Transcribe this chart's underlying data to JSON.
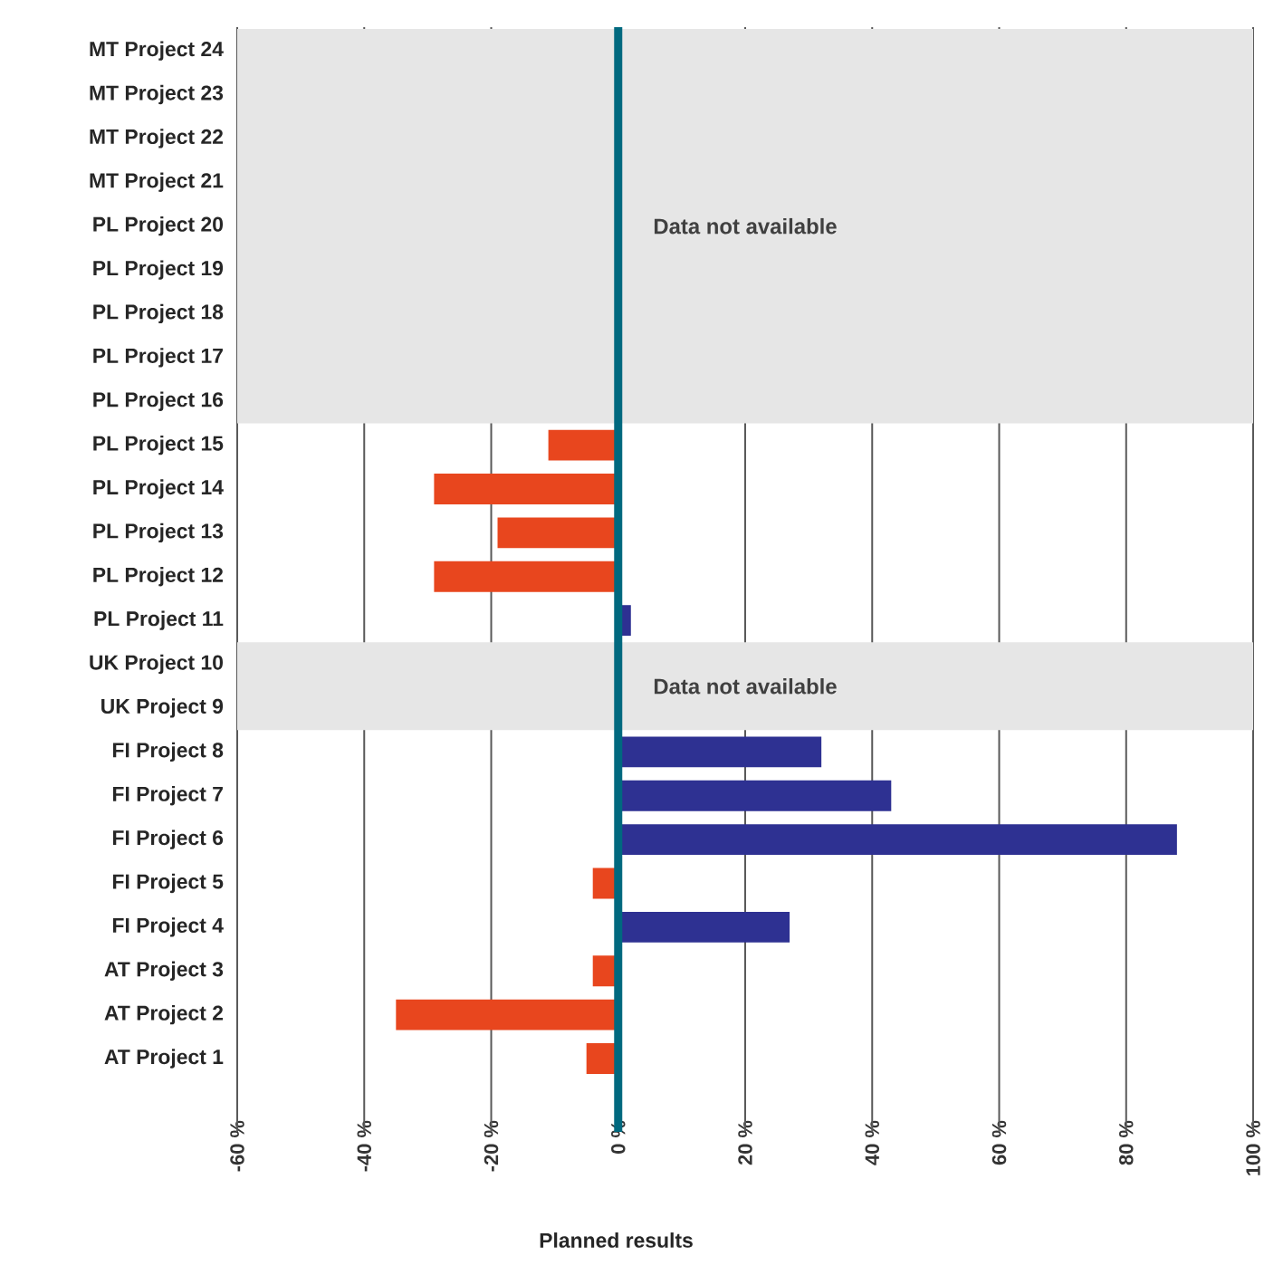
{
  "chart_data": {
    "type": "bar",
    "orientation": "horizontal",
    "xlabel": "Planned results",
    "categories": [
      "MT Project 24",
      "MT Project 23",
      "MT Project 22",
      "MT Project 21",
      "PL Project 20",
      "PL Project 19",
      "PL Project 18",
      "PL Project 17",
      "PL Project 16",
      "PL Project 15",
      "PL Project 14",
      "PL Project 13",
      "PL Project 12",
      "PL Project 11",
      "UK Project 10",
      "UK Project 9",
      "FI Project 8",
      "FI Project 7",
      "FI Project 6",
      "FI Project 5",
      "FI Project 4",
      "AT Project 3",
      "AT Project 2",
      "AT Project 1"
    ],
    "values": [
      null,
      null,
      null,
      null,
      null,
      null,
      null,
      null,
      null,
      -11,
      -29,
      -19,
      -29,
      2,
      null,
      null,
      32,
      43,
      88,
      -4,
      27,
      -4,
      -35,
      -5
    ],
    "colors": [
      "#2e3192",
      "#2e3192",
      "#2e3192",
      "#2e3192",
      "#2e3192",
      "#2e3192",
      "#2e3192",
      "#2e3192",
      "#2e3192",
      "#e8461e",
      "#e8461e",
      "#e8461e",
      "#e8461e",
      "#2e3192",
      "#2e3192",
      "#2e3192",
      "#2e3192",
      "#2e3192",
      "#2e3192",
      "#e8461e",
      "#2e3192",
      "#e8461e",
      "#e8461e",
      "#e8461e"
    ],
    "xlim": [
      -60,
      100
    ],
    "xticks": [
      {
        "value": -60,
        "label": "-60 %"
      },
      {
        "value": -40,
        "label": "-40 %"
      },
      {
        "value": -20,
        "label": "-20 %"
      },
      {
        "value": 0,
        "label": "0 %"
      },
      {
        "value": 20,
        "label": "20 %"
      },
      {
        "value": 40,
        "label": "40 %"
      },
      {
        "value": 60,
        "label": "60 %"
      },
      {
        "value": 80,
        "label": "80 %"
      },
      {
        "value": 100,
        "label": "100 %"
      }
    ],
    "grid": "x",
    "bands": [
      {
        "axis": "y",
        "from": "MT Project 24",
        "to": "PL Project 16",
        "label": "Data not available",
        "color": "#e6e6e6"
      },
      {
        "axis": "y",
        "from": "UK Project 10",
        "to": "UK Project 9",
        "label": "Data not available",
        "color": "#e6e6e6"
      }
    ],
    "ref_lines": [
      {
        "axis": "x",
        "value": 0,
        "color": "#00697f"
      }
    ]
  }
}
